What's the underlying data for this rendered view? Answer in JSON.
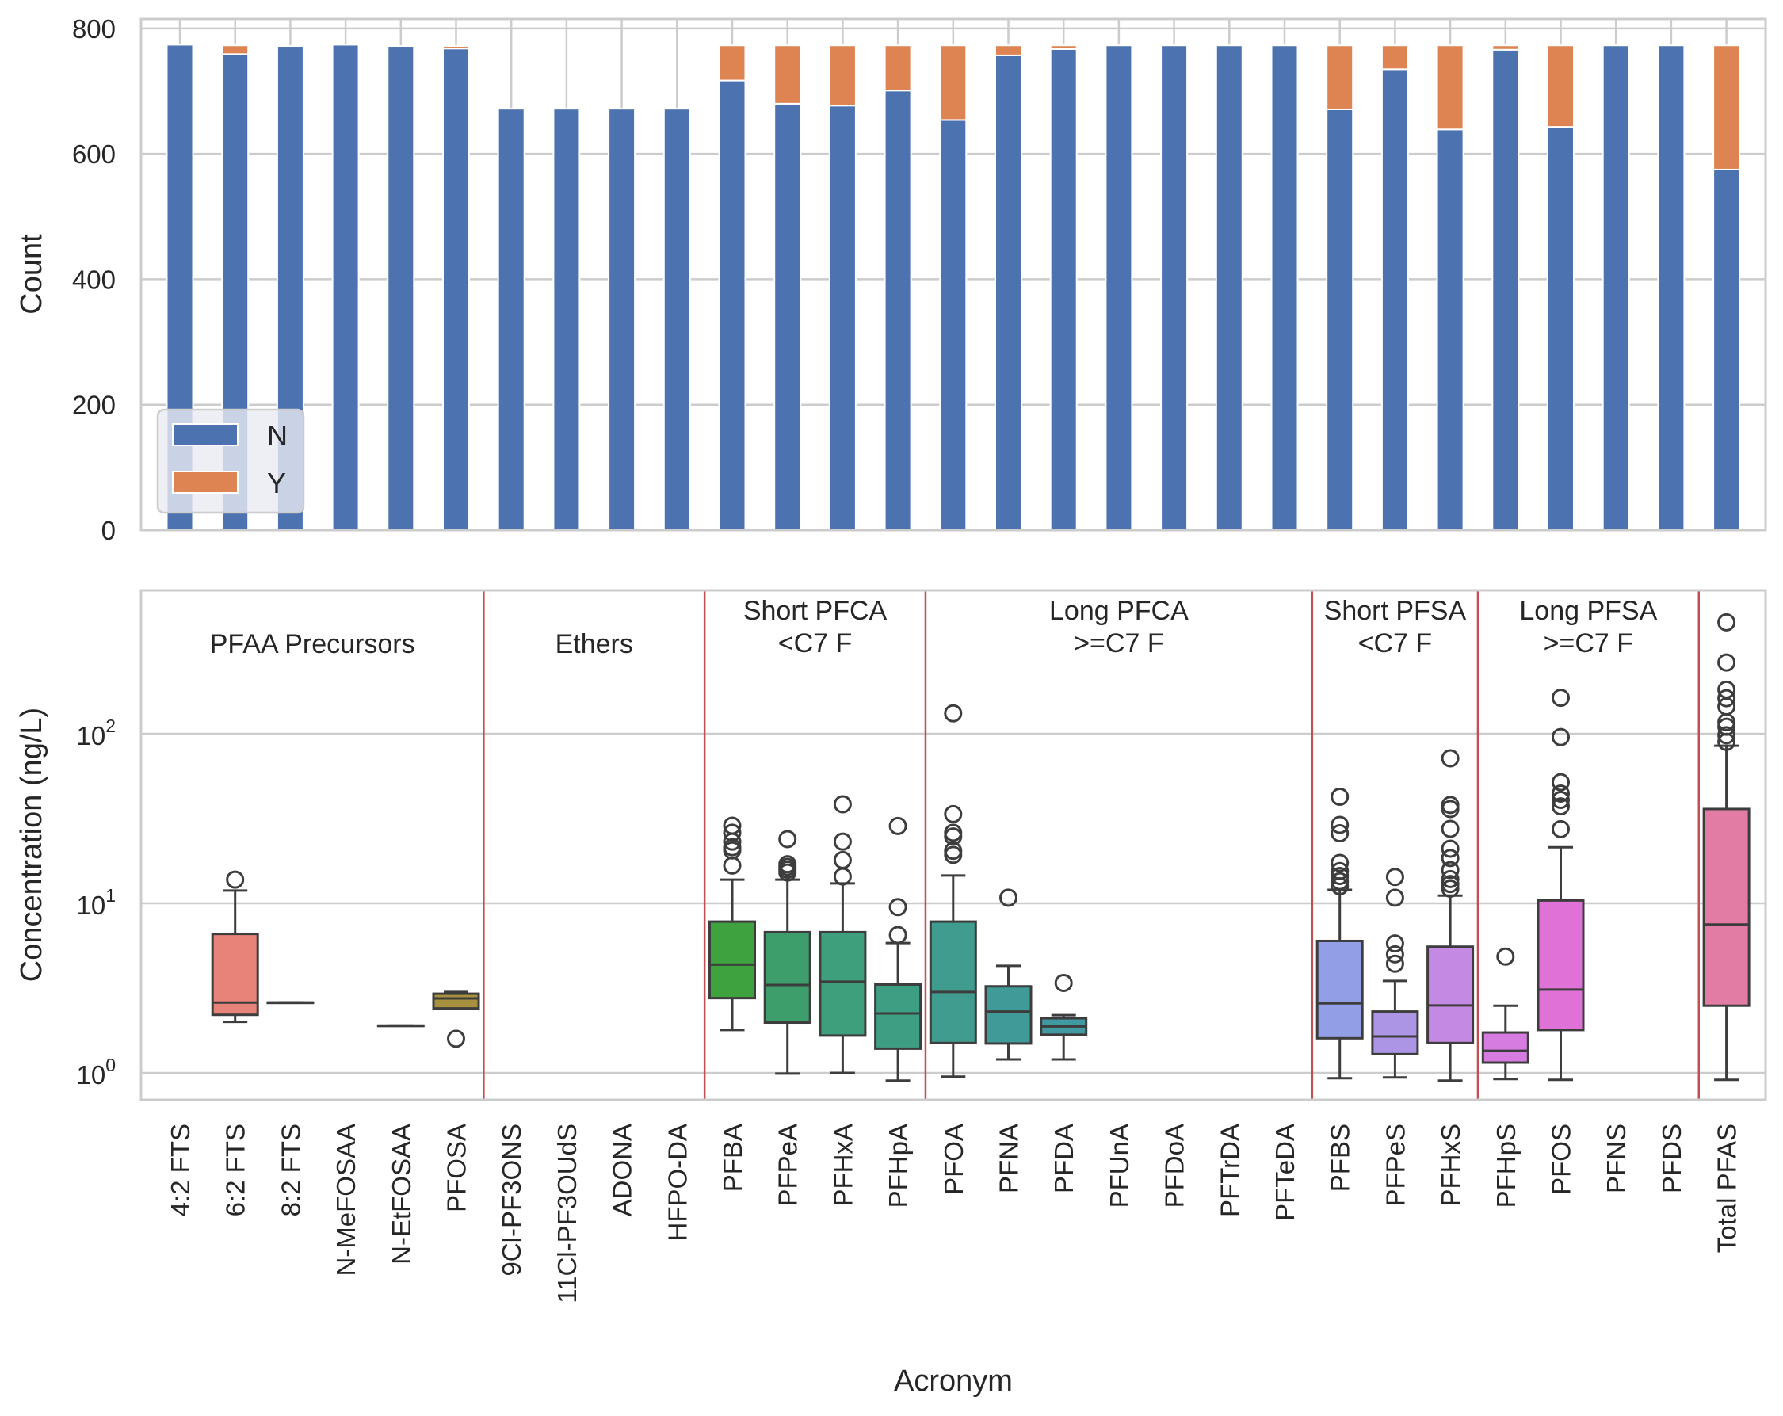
{
  "chart_data": [
    {
      "type": "bar",
      "stacked": true,
      "title": "",
      "xlabel": "",
      "ylabel": "Count",
      "ylim": [
        0,
        815
      ],
      "yticks": [
        0,
        200,
        400,
        600,
        800
      ],
      "grid": true,
      "legend": {
        "placement": "lower-left",
        "entries": [
          "N",
          "Y"
        ]
      },
      "categories": [
        "4:2 FTS",
        "6:2 FTS",
        "8:2 FTS",
        "N-MeFOSAA",
        "N-EtFOSAA",
        "PFOSA",
        "9Cl-PF3ONS",
        "11Cl-PF3OUdS",
        "ADONA",
        "HFPO-DA",
        "PFBA",
        "PFPeA",
        "PFHxA",
        "PFHpA",
        "PFOA",
        "PFNA",
        "PFDA",
        "PFUnA",
        "PFDoA",
        "PFTrDA",
        "PFTeDA",
        "PFBS",
        "PFPeS",
        "PFHxS",
        "PFHpS",
        "PFOS",
        "PFNS",
        "PFDS",
        "Total PFAS"
      ],
      "series": [
        {
          "name": "N",
          "color": "#4c72b0",
          "values": [
            774,
            759,
            772,
            774,
            772,
            768,
            672,
            672,
            672,
            672,
            717,
            680,
            677,
            701,
            654,
            757,
            767,
            773,
            773,
            773,
            773,
            671,
            735,
            639,
            766,
            643,
            773,
            773,
            575
          ]
        },
        {
          "name": "Y",
          "color": "#dd8452",
          "values": [
            0,
            14,
            0,
            0,
            0,
            4,
            0,
            0,
            0,
            0,
            56,
            93,
            96,
            72,
            119,
            16,
            6,
            0,
            0,
            0,
            0,
            102,
            38,
            134,
            7,
            130,
            0,
            0,
            198
          ]
        }
      ]
    },
    {
      "type": "box",
      "title": "",
      "xlabel": "Acronym",
      "ylabel": "Concentration (ng/L)",
      "yscale": "log",
      "ylim": [
        0.75,
        700
      ],
      "yticks": [
        {
          "value": 1,
          "base": "10",
          "exp": "0"
        },
        {
          "value": 10,
          "base": "10",
          "exp": "1"
        },
        {
          "value": 100,
          "base": "10",
          "exp": "2"
        }
      ],
      "grid": true,
      "categories": [
        "4:2 FTS",
        "6:2 FTS",
        "8:2 FTS",
        "N-MeFOSAA",
        "N-EtFOSAA",
        "PFOSA",
        "9Cl-PF3ONS",
        "11Cl-PF3OUdS",
        "ADONA",
        "HFPO-DA",
        "PFBA",
        "PFPeA",
        "PFHxA",
        "PFHpA",
        "PFOA",
        "PFNA",
        "PFDA",
        "PFUnA",
        "PFDoA",
        "PFTrDA",
        "PFTeDA",
        "PFBS",
        "PFPeS",
        "PFHxS",
        "PFHpS",
        "PFOS",
        "PFNS",
        "PFDS",
        "Total PFAS"
      ],
      "groups": [
        {
          "label": [
            "PFAA Precursors"
          ],
          "from": 0,
          "to": 5
        },
        {
          "label": [
            "Ethers"
          ],
          "from": 6,
          "to": 9
        },
        {
          "label": [
            "Short PFCA",
            "<C7 F"
          ],
          "from": 10,
          "to": 13
        },
        {
          "label": [
            "Long PFCA",
            ">=C7 F"
          ],
          "from": 14,
          "to": 20
        },
        {
          "label": [
            "Short PFSA",
            "<C7 F"
          ],
          "from": 21,
          "to": 23
        },
        {
          "label": [
            "Long PFSA",
            ">=C7 F"
          ],
          "from": 24,
          "to": 27
        }
      ],
      "separator_color": "#c44e52",
      "boxes": [
        null,
        {
          "category": "6:2 FTS",
          "color": "#e8837a",
          "q1": 2.2,
          "median": 2.6,
          "q3": 6.6,
          "whislo": 2.0,
          "whishi": 11.9,
          "fliers": [
            13.8
          ]
        },
        {
          "category": "8:2 FTS",
          "color": "#d8955a",
          "q1": 2.6,
          "median": 2.6,
          "q3": 2.6,
          "whislo": 2.6,
          "whishi": 2.6,
          "fliers": []
        },
        null,
        {
          "category": "N-EtFOSAA",
          "color": "#b79a3d",
          "q1": 1.9,
          "median": 1.9,
          "q3": 1.9,
          "whislo": 1.9,
          "whishi": 1.9,
          "fliers": []
        },
        {
          "category": "PFOSA",
          "color": "#a8913e",
          "q1": 2.4,
          "median": 2.75,
          "q3": 2.93,
          "whislo": 2.4,
          "whishi": 3.0,
          "fliers": [
            1.59
          ]
        },
        null,
        null,
        null,
        null,
        {
          "category": "PFBA",
          "color": "#3ea23f",
          "q1": 2.76,
          "median": 4.35,
          "q3": 7.8,
          "whislo": 1.79,
          "whishi": 13.8,
          "fliers": [
            16.7,
            20.5,
            21.4,
            23.1,
            26.1,
            28.7
          ]
        },
        {
          "category": "PFPeA",
          "color": "#3d9e6b",
          "q1": 1.98,
          "median": 3.3,
          "q3": 6.76,
          "whislo": 0.99,
          "whishi": 13.8,
          "fliers": [
            15.2,
            15.8,
            16.4,
            17.0,
            23.9
          ]
        },
        {
          "category": "PFHxA",
          "color": "#3e9f7c",
          "q1": 1.66,
          "median": 3.45,
          "q3": 6.76,
          "whislo": 1.0,
          "whishi": 13.1,
          "fliers": [
            14.4,
            18.0,
            23.1,
            38.4
          ]
        },
        {
          "category": "PFHpA",
          "color": "#3e9e84",
          "q1": 1.39,
          "median": 2.24,
          "q3": 3.32,
          "whislo": 0.9,
          "whishi": 5.83,
          "fliers": [
            6.5,
            9.5,
            28.6
          ]
        },
        {
          "category": "PFOA",
          "color": "#3f9c8e",
          "q1": 1.5,
          "median": 3.0,
          "q3": 7.8,
          "whislo": 0.95,
          "whishi": 14.6,
          "fliers": [
            19.3,
            20.4,
            24.8,
            26.1,
            33.6,
            132
          ]
        },
        {
          "category": "PFNA",
          "color": "#409a98",
          "q1": 1.49,
          "median": 2.3,
          "q3": 3.24,
          "whislo": 1.2,
          "whishi": 4.28,
          "fliers": [
            10.8
          ]
        },
        {
          "category": "PFDA",
          "color": "#4199a2",
          "q1": 1.68,
          "median": 1.88,
          "q3": 2.1,
          "whislo": 1.2,
          "whishi": 2.19,
          "fliers": [
            3.39
          ]
        },
        null,
        null,
        null,
        null,
        {
          "category": "PFBS",
          "color": "#929ee6",
          "q1": 1.6,
          "median": 2.57,
          "q3": 6.0,
          "whislo": 0.93,
          "whishi": 12.0,
          "fliers": [
            12.6,
            13.5,
            14.5,
            15.5,
            17.3,
            25.9,
            29.0,
            42.5
          ]
        },
        {
          "category": "PFPeS",
          "color": "#ad95e6",
          "q1": 1.29,
          "median": 1.64,
          "q3": 2.3,
          "whislo": 0.94,
          "whishi": 3.49,
          "fliers": [
            4.4,
            5.0,
            5.8,
            10.8,
            14.3
          ]
        },
        {
          "category": "PFHxS",
          "color": "#c48ae3",
          "q1": 1.5,
          "median": 2.5,
          "q3": 5.55,
          "whislo": 0.9,
          "whishi": 11.1,
          "fliers": [
            12.2,
            13.0,
            13.9,
            15.7,
            18.5,
            21.0,
            27.5,
            36.0,
            38.0,
            71.6
          ]
        },
        {
          "category": "PFHpS",
          "color": "#d67be0",
          "q1": 1.15,
          "median": 1.35,
          "q3": 1.73,
          "whislo": 0.92,
          "whishi": 2.49,
          "fliers": [
            4.85
          ]
        },
        {
          "category": "PFOS",
          "color": "#e071d7",
          "q1": 1.79,
          "median": 3.1,
          "q3": 10.4,
          "whislo": 0.91,
          "whishi": 21.4,
          "fliers": [
            27.4,
            37.3,
            40.7,
            44.4,
            51.8,
            95.6,
            163
          ]
        },
        null,
        null,
        {
          "category": "Total PFAS",
          "color": "#e27ca5",
          "q1": 2.49,
          "median": 7.5,
          "q3": 36,
          "whislo": 0.91,
          "whishi": 85,
          "fliers": [
            89.6,
            98,
            110,
            117,
            145,
            162,
            182,
            263,
            454
          ]
        }
      ]
    }
  ]
}
